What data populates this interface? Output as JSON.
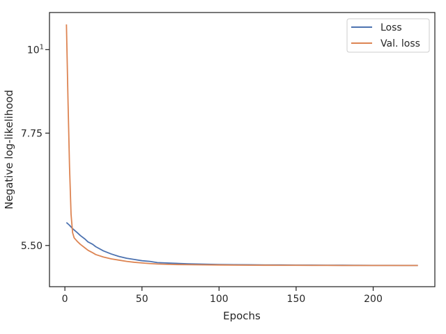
{
  "chart_data": {
    "type": "line",
    "xlabel": "Epochs",
    "ylabel": "Negative log-likelihood",
    "xlim": [
      -10,
      240
    ],
    "ylim": [
      4.85,
      11.2
    ],
    "y_scale": "log",
    "grid": false,
    "legend_position": "top-right",
    "x_ticks": [
      0,
      50,
      100,
      150,
      200
    ],
    "y_ticks": [
      {
        "value": 5.5,
        "label": "5.50"
      },
      {
        "value": 7.75,
        "label": "7.75"
      },
      {
        "value": 10,
        "label": "10",
        "sup": "1"
      }
    ],
    "series": [
      {
        "name": "Loss",
        "color": "#4c72b0",
        "x": [
          1,
          3,
          5,
          8,
          10,
          13,
          15,
          18,
          20,
          25,
          30,
          35,
          40,
          45,
          50,
          55,
          60,
          70,
          80,
          90,
          100,
          110,
          120,
          130,
          140,
          150,
          160,
          170,
          180,
          190,
          200,
          210,
          220,
          229
        ],
        "y": [
          5.9,
          5.85,
          5.79,
          5.72,
          5.67,
          5.61,
          5.56,
          5.52,
          5.48,
          5.41,
          5.36,
          5.32,
          5.29,
          5.27,
          5.25,
          5.24,
          5.22,
          5.21,
          5.2,
          5.195,
          5.19,
          5.187,
          5.185,
          5.183,
          5.182,
          5.18,
          5.18,
          5.179,
          5.178,
          5.177,
          5.176,
          5.176,
          5.175,
          5.175
        ]
      },
      {
        "name": "Val. loss",
        "color": "#dd8452",
        "x": [
          1,
          2,
          3,
          4,
          5,
          6,
          8,
          10,
          13,
          15,
          18,
          20,
          25,
          30,
          35,
          40,
          45,
          50,
          55,
          60,
          70,
          80,
          90,
          100,
          110,
          120,
          130,
          140,
          150,
          160,
          170,
          180,
          190,
          200,
          210,
          220,
          229
        ],
        "y": [
          10.8,
          8.6,
          7.0,
          6.05,
          5.72,
          5.63,
          5.57,
          5.52,
          5.46,
          5.42,
          5.38,
          5.35,
          5.31,
          5.28,
          5.26,
          5.24,
          5.225,
          5.215,
          5.205,
          5.198,
          5.19,
          5.187,
          5.184,
          5.182,
          5.18,
          5.179,
          5.178,
          5.177,
          5.177,
          5.176,
          5.176,
          5.175,
          5.175,
          5.175,
          5.175,
          5.175,
          5.175
        ]
      }
    ]
  }
}
